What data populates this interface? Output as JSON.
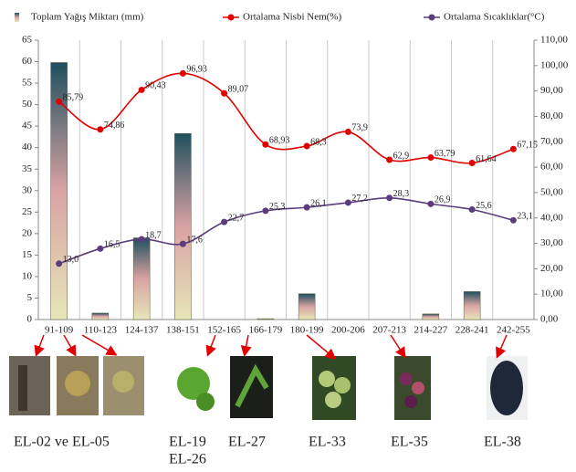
{
  "chart_data": {
    "type": "bar",
    "categories": [
      "91-109",
      "110-123",
      "124-137",
      "138-151",
      "152-165",
      "166-179",
      "180-199",
      "200-206",
      "207-213",
      "214-227",
      "228-241",
      "242-255"
    ],
    "series": [
      {
        "name": "Toplam Yağış Miktarı (mm)",
        "type": "bar",
        "color": "#2e5560",
        "values": [
          59.8,
          1.5,
          19,
          43.3,
          0,
          0.2,
          6,
          0,
          0,
          1.3,
          6.5,
          0
        ]
      },
      {
        "name": "Ortalama Nisbi Nem(%)",
        "type": "line",
        "axis": "y2",
        "color": "#e00000",
        "values": [
          85.79,
          74.86,
          90.43,
          96.93,
          89.07,
          68.93,
          68.3,
          73.9,
          62.9,
          63.79,
          61.64,
          67.15
        ],
        "value_labels": [
          "85,79",
          "74,86",
          "90,43",
          "96,93",
          "89,07",
          "68,93",
          "68,3",
          "73,9",
          "62,9",
          "63,79",
          "61,64",
          "67,15"
        ]
      },
      {
        "name": "Ortalama Sıcaklıklar(°C)",
        "type": "line",
        "color": "#5b3c7c",
        "values": [
          13.0,
          16.5,
          18.7,
          17.6,
          22.7,
          25.3,
          26.1,
          27.2,
          28.3,
          26.9,
          25.6,
          23.1
        ],
        "value_labels": [
          "13,0",
          "16,5",
          "18,7",
          "17,6",
          "22,7",
          "25,3",
          "26,1",
          "27,2",
          "28,3",
          "26,9",
          "25,6",
          "23,1"
        ]
      }
    ],
    "ylim": [
      0,
      65
    ],
    "yticks": [
      0,
      5,
      10,
      15,
      20,
      25,
      30,
      35,
      40,
      45,
      50,
      55,
      60,
      65
    ],
    "y2lim": [
      0,
      110
    ],
    "y2ticks": [
      {
        "value": 0,
        "label": "0,00"
      },
      {
        "value": 10,
        "label": "10,00"
      },
      {
        "value": 20,
        "label": "20,00"
      },
      {
        "value": 30,
        "label": "30,00"
      },
      {
        "value": 40,
        "label": "40,00"
      },
      {
        "value": 50,
        "label": "50,00"
      },
      {
        "value": 60,
        "label": "60,00"
      },
      {
        "value": 70,
        "label": "70,00"
      },
      {
        "value": 80,
        "label": "80,00"
      },
      {
        "value": 90,
        "label": "90,00"
      },
      {
        "value": 100,
        "label": "100,00"
      },
      {
        "value": 110,
        "label": "110,00"
      }
    ],
    "grid": "x",
    "annotations": [
      "EL-02 ve EL-05",
      "EL-19",
      "EL-26",
      "EL-27",
      "EL-33",
      "EL-35",
      "EL-38"
    ]
  }
}
